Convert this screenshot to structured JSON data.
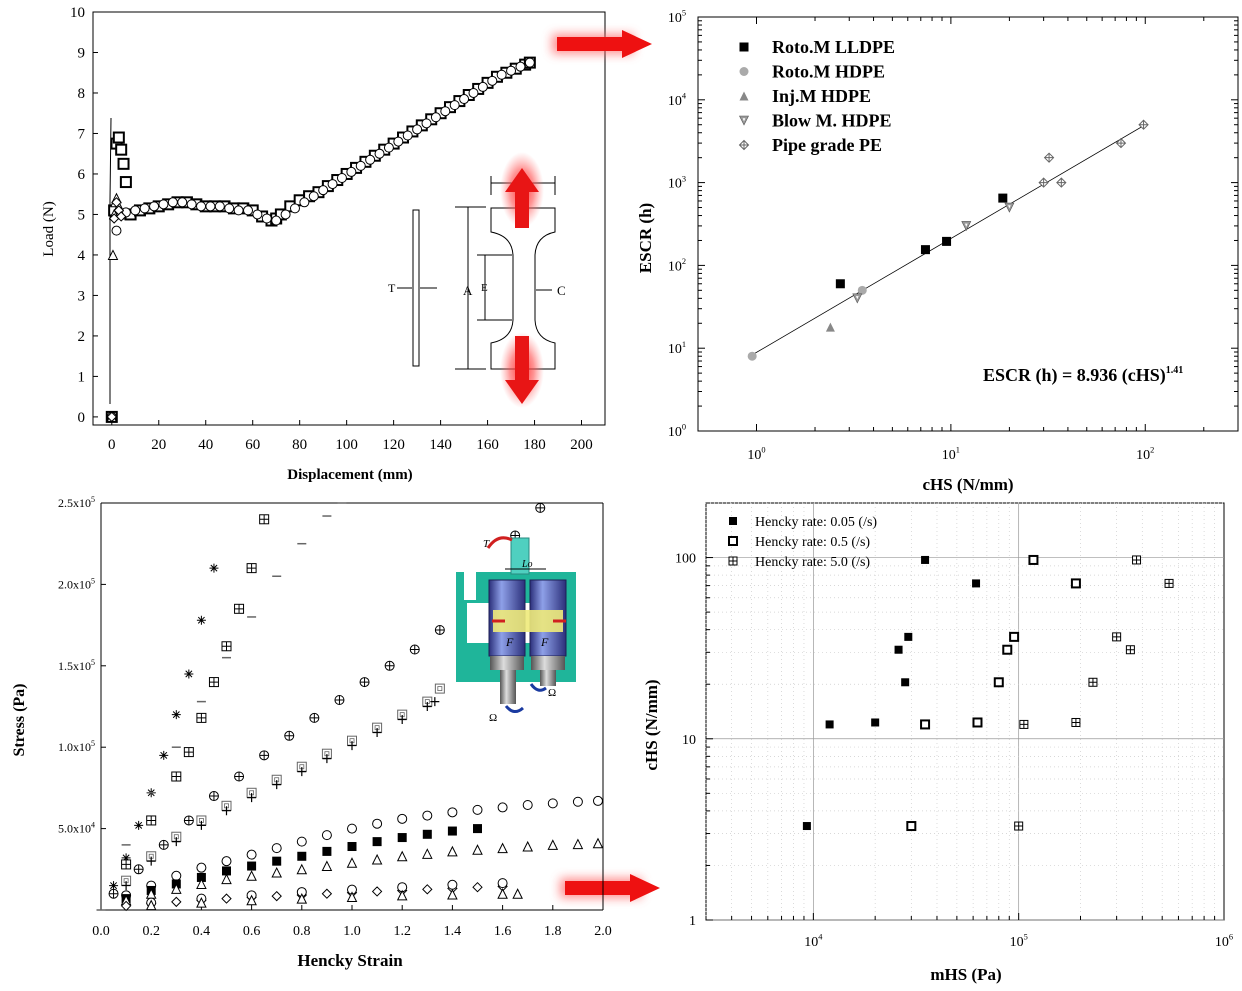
{
  "chart_data": [
    {
      "type": "scatter",
      "xlabel": "Displacement (mm)",
      "ylabel": "Load (N)",
      "xlim": [
        -8,
        210
      ],
      "ylim": [
        -0.2,
        10
      ],
      "xticks": [
        0,
        20,
        40,
        60,
        80,
        100,
        120,
        140,
        160,
        180,
        200
      ],
      "yticks": [
        0,
        1,
        2,
        3,
        4,
        5,
        6,
        7,
        8,
        9,
        10
      ],
      "series": [
        {
          "marker": "open-square",
          "x": [
            0,
            1,
            2,
            3,
            4,
            5,
            6,
            8,
            12,
            16,
            20,
            24,
            28,
            32,
            36,
            40,
            44,
            48,
            52,
            56,
            60,
            64,
            68,
            70,
            72,
            76,
            80,
            84,
            88,
            92,
            96,
            100,
            104,
            108,
            112,
            116,
            120,
            124,
            128,
            132,
            136,
            140,
            144,
            148,
            152,
            156,
            160,
            164,
            168,
            172,
            176,
            178
          ],
          "y": [
            0,
            5.1,
            6.75,
            6.9,
            6.6,
            6.25,
            5.8,
            5.0,
            5.1,
            5.15,
            5.2,
            5.25,
            5.3,
            5.3,
            5.25,
            5.2,
            5.2,
            5.2,
            5.15,
            5.15,
            5.1,
            4.95,
            4.85,
            4.9,
            5.0,
            5.2,
            5.35,
            5.45,
            5.55,
            5.7,
            5.85,
            6.0,
            6.15,
            6.3,
            6.45,
            6.6,
            6.75,
            6.9,
            7.05,
            7.2,
            7.35,
            7.5,
            7.65,
            7.8,
            7.95,
            8.1,
            8.25,
            8.4,
            8.5,
            8.6,
            8.7,
            8.75
          ]
        },
        {
          "marker": "open-circle",
          "x": [
            0,
            2,
            4,
            6,
            10,
            14,
            18,
            22,
            26,
            30,
            34,
            38,
            42,
            46,
            50,
            54,
            58,
            62,
            66,
            70,
            74,
            78,
            82,
            86,
            90,
            94,
            98,
            102,
            106,
            110,
            114,
            118,
            122,
            126,
            130,
            134,
            138,
            142,
            146,
            150,
            154,
            158,
            162,
            166,
            170,
            174,
            178
          ],
          "y": [
            0,
            4.6,
            5.0,
            5.05,
            5.1,
            5.15,
            5.2,
            5.25,
            5.3,
            5.3,
            5.25,
            5.2,
            5.2,
            5.2,
            5.15,
            5.1,
            5.1,
            5.0,
            4.9,
            4.85,
            5.0,
            5.15,
            5.3,
            5.45,
            5.6,
            5.75,
            5.9,
            6.05,
            6.2,
            6.35,
            6.5,
            6.65,
            6.8,
            6.95,
            7.1,
            7.25,
            7.4,
            7.55,
            7.7,
            7.85,
            8.0,
            8.15,
            8.3,
            8.45,
            8.55,
            8.65,
            8.75
          ]
        },
        {
          "marker": "open-triangle",
          "x": [
            0,
            0.5,
            1,
            1.5,
            2,
            3,
            4
          ],
          "y": [
            0,
            4.0,
            5.0,
            5.3,
            5.4,
            5.2,
            5.0
          ]
        },
        {
          "marker": "open-diamond",
          "x": [
            0,
            1,
            2,
            3,
            4
          ],
          "y": [
            0,
            4.9,
            5.3,
            5.1,
            4.95
          ]
        }
      ],
      "diagram": {
        "labels": [
          "T",
          "A",
          "E",
          "C"
        ]
      }
    },
    {
      "type": "scatter",
      "xlabel": "cHS (N/mm)",
      "ylabel": "ESCR (h)",
      "xscale": "log",
      "yscale": "log",
      "xlim": [
        0.5,
        300
      ],
      "ylim": [
        1,
        100000
      ],
      "xticks": [
        {
          "base": "10",
          "exp": "0"
        },
        {
          "base": "10",
          "exp": "1"
        },
        {
          "base": "10",
          "exp": "2"
        }
      ],
      "yticks": [
        {
          "base": "10",
          "exp": "0"
        },
        {
          "base": "10",
          "exp": "1"
        },
        {
          "base": "10",
          "exp": "2"
        },
        {
          "base": "10",
          "exp": "3"
        },
        {
          "base": "10",
          "exp": "4"
        },
        {
          "base": "10",
          "exp": "5"
        }
      ],
      "legend_position": "top-left",
      "series": [
        {
          "name": "Roto.M LLDPE",
          "marker": "filled-square",
          "color": "#000000",
          "x": [
            2.7,
            7.4,
            9.5,
            18.5
          ],
          "y": [
            60,
            155,
            195,
            650
          ]
        },
        {
          "name": "Roto.M HDPE",
          "marker": "filled-circle",
          "color": "#aaaaaa",
          "x": [
            0.95,
            3.5
          ],
          "y": [
            8,
            50
          ]
        },
        {
          "name": "Inj.M HDPE",
          "marker": "filled-triangle",
          "color": "#888888",
          "x": [
            2.4
          ],
          "y": [
            18
          ]
        },
        {
          "name": "Blow M. HDPE",
          "marker": "down-triangle",
          "color": "#999999",
          "x": [
            3.3,
            12,
            20
          ],
          "y": [
            40,
            300,
            500
          ]
        },
        {
          "name": "Pipe grade PE",
          "marker": "crossed-diamond",
          "color": "#666666",
          "x": [
            30,
            32,
            37,
            75,
            98
          ],
          "y": [
            1000,
            2000,
            1000,
            3000,
            5000
          ]
        }
      ],
      "fit": {
        "x": [
          0.95,
          100
        ],
        "y": [
          8.3,
          5000
        ]
      },
      "annotation": {
        "text": "ESCR (h) = 8.936 (cHS)",
        "superscript": "1.41"
      }
    },
    {
      "type": "scatter",
      "xlabel": "Hencky Strain",
      "ylabel": "Stress (Pa)",
      "xlim": [
        0,
        2.0
      ],
      "ylim": [
        0,
        250000
      ],
      "xticks": [
        "0.0",
        "0.2",
        "0.4",
        "0.6",
        "0.8",
        "1.0",
        "1.2",
        "1.4",
        "1.6",
        "1.8",
        "2.0"
      ],
      "yticks": [
        {
          "value": 50000,
          "mant": "5.0x10",
          "exp": "4"
        },
        {
          "value": 100000,
          "mant": "1.0x10",
          "exp": "5"
        },
        {
          "value": 150000,
          "mant": "1.5x10",
          "exp": "5"
        },
        {
          "value": 200000,
          "mant": "2.0x10",
          "exp": "5"
        },
        {
          "value": 250000,
          "mant": "2.5x10",
          "exp": "5"
        }
      ],
      "series": [
        {
          "marker": "asterisk",
          "x": [
            0.05,
            0.1,
            0.15,
            0.2,
            0.25,
            0.3,
            0.35,
            0.4,
            0.45
          ],
          "y": [
            15000,
            32000,
            52000,
            72000,
            95000,
            120000,
            145000,
            178000,
            210000
          ]
        },
        {
          "marker": "boxed-plus",
          "x": [
            0.1,
            0.2,
            0.3,
            0.35,
            0.4,
            0.45,
            0.5,
            0.55,
            0.6,
            0.65
          ],
          "y": [
            28000,
            55000,
            82000,
            97000,
            118000,
            140000,
            162000,
            185000,
            210000,
            240000
          ]
        },
        {
          "marker": "dash",
          "x": [
            0.0,
            0.1,
            0.2,
            0.3,
            0.4,
            0.5,
            0.6,
            0.7,
            0.8,
            0.9,
            0.96
          ],
          "y": [
            0,
            40000,
            72000,
            100000,
            128000,
            155000,
            180000,
            205000,
            225000,
            242000,
            250000
          ]
        },
        {
          "marker": "crossed-circle",
          "x": [
            0.05,
            0.15,
            0.25,
            0.35,
            0.45,
            0.55,
            0.65,
            0.75,
            0.85,
            0.95,
            1.05,
            1.15,
            1.25,
            1.35,
            1.45,
            1.55,
            1.65,
            1.75
          ],
          "y": [
            10000,
            25000,
            40000,
            55000,
            70000,
            82000,
            95000,
            107000,
            118000,
            129000,
            140000,
            150000,
            160000,
            172000,
            188000,
            203000,
            230000,
            247000
          ]
        },
        {
          "marker": "boxed-square",
          "x": [
            0.1,
            0.2,
            0.3,
            0.4,
            0.5,
            0.6,
            0.7,
            0.8,
            0.9,
            1.0,
            1.1,
            1.2,
            1.3,
            1.35
          ],
          "y": [
            18000,
            33000,
            45000,
            55000,
            64000,
            72000,
            80000,
            88000,
            96000,
            104000,
            112000,
            120000,
            128000,
            136000
          ]
        },
        {
          "marker": "plus",
          "x": [
            0.1,
            0.2,
            0.3,
            0.4,
            0.5,
            0.6,
            0.7,
            0.8,
            0.9,
            1.0,
            1.1,
            1.2,
            1.3,
            1.33
          ],
          "y": [
            15000,
            30000,
            42000,
            52000,
            61000,
            69000,
            77000,
            85000,
            93000,
            101000,
            109000,
            117000,
            125000,
            128000
          ]
        },
        {
          "marker": "open-circle",
          "x": [
            0.1,
            0.2,
            0.3,
            0.4,
            0.5,
            0.6,
            0.7,
            0.8,
            0.9,
            1.0,
            1.1,
            1.2,
            1.3,
            1.4,
            1.5,
            1.6,
            1.7,
            1.8,
            1.9,
            1.98
          ],
          "y": [
            9000,
            15000,
            21000,
            26000,
            30000,
            34000,
            38000,
            42000,
            46000,
            50000,
            53000,
            56000,
            58000,
            60000,
            61500,
            63000,
            64500,
            65500,
            66500,
            67000
          ]
        },
        {
          "marker": "filled-square",
          "x": [
            0.1,
            0.2,
            0.3,
            0.4,
            0.5,
            0.6,
            0.7,
            0.8,
            0.9,
            1.0,
            1.1,
            1.2,
            1.3,
            1.4,
            1.5
          ],
          "y": [
            7000,
            12000,
            16000,
            20000,
            24000,
            27000,
            30000,
            33000,
            36000,
            39000,
            42000,
            44500,
            46500,
            48500,
            50000
          ]
        },
        {
          "marker": "open-triangle",
          "x": [
            0.1,
            0.2,
            0.3,
            0.4,
            0.5,
            0.6,
            0.7,
            0.8,
            0.9,
            1.0,
            1.1,
            1.2,
            1.3,
            1.4,
            1.5,
            1.6,
            1.7,
            1.8,
            1.9,
            1.98
          ],
          "y": [
            6000,
            10000,
            13000,
            16000,
            19000,
            21000,
            23000,
            25000,
            27000,
            29000,
            31000,
            33000,
            34500,
            36000,
            37000,
            38000,
            39000,
            40000,
            40500,
            41000
          ]
        },
        {
          "marker": "open-diamond",
          "x": [
            0.1,
            0.2,
            0.3,
            0.4,
            0.5,
            0.6,
            0.7,
            0.8,
            0.9,
            1.0,
            1.1,
            1.2,
            1.3,
            1.4,
            1.5,
            1.6
          ],
          "y": [
            2500,
            4000,
            5000,
            6000,
            7000,
            7800,
            8500,
            9200,
            10000,
            10700,
            11400,
            12000,
            12700,
            13300,
            14000,
            14500
          ]
        },
        {
          "marker": "open-circle",
          "x": [
            0.2,
            0.4,
            0.6,
            0.8,
            1.0,
            1.2,
            1.4,
            1.6
          ],
          "y": [
            4500,
            7000,
            9000,
            11000,
            12500,
            14000,
            15500,
            16500
          ]
        },
        {
          "marker": "open-triangle",
          "x": [
            0.2,
            0.4,
            0.6,
            0.8,
            1.0,
            1.2,
            1.4,
            1.6,
            1.66
          ],
          "y": [
            3000,
            4500,
            6000,
            7000,
            8000,
            9000,
            9500,
            10000,
            10000
          ]
        }
      ],
      "diagram": {
        "labels": [
          "T",
          "Lo",
          "F",
          "F",
          "Ω",
          "Ω"
        ]
      }
    },
    {
      "type": "scatter",
      "xlabel": "mHS (Pa)",
      "ylabel": "cHS (N/mm)",
      "xscale": "log",
      "yscale": "log",
      "xlim": [
        3000,
        1000000
      ],
      "ylim": [
        1,
        200
      ],
      "xticks": [
        {
          "value": 10000,
          "base": "10",
          "exp": "4"
        },
        {
          "value": 100000,
          "base": "10",
          "exp": "5"
        },
        {
          "value": 1000000,
          "base": "10",
          "exp": "6"
        }
      ],
      "yticks": [
        {
          "value": 1,
          "text": "1"
        },
        {
          "value": 10,
          "text": "10"
        },
        {
          "value": 100,
          "text": "100"
        }
      ],
      "legend_position": "top-left",
      "series": [
        {
          "name": "Hencky rate: 0.05 (/s)",
          "marker": "filled-square",
          "x": [
            9300,
            12000,
            20000,
            26000,
            28000,
            29000,
            35000,
            62000
          ],
          "y": [
            3.3,
            12,
            12.3,
            31,
            20.5,
            36.5,
            97,
            72
          ]
        },
        {
          "name": "Hencky rate: 0.5 (/s)",
          "marker": "open-square",
          "x": [
            30000,
            35000,
            63000,
            80000,
            88000,
            95000,
            118000,
            190000
          ],
          "y": [
            3.3,
            12,
            12.3,
            20.5,
            31,
            36.5,
            97,
            72
          ]
        },
        {
          "name": "Hencky rate: 5.0 (/s)",
          "marker": "boxed-plus",
          "x": [
            100000,
            106000,
            190000,
            230000,
            300000,
            350000,
            375000,
            540000
          ],
          "y": [
            3.3,
            12,
            12.3,
            20.5,
            36.5,
            31,
            97,
            72
          ]
        }
      ]
    }
  ]
}
